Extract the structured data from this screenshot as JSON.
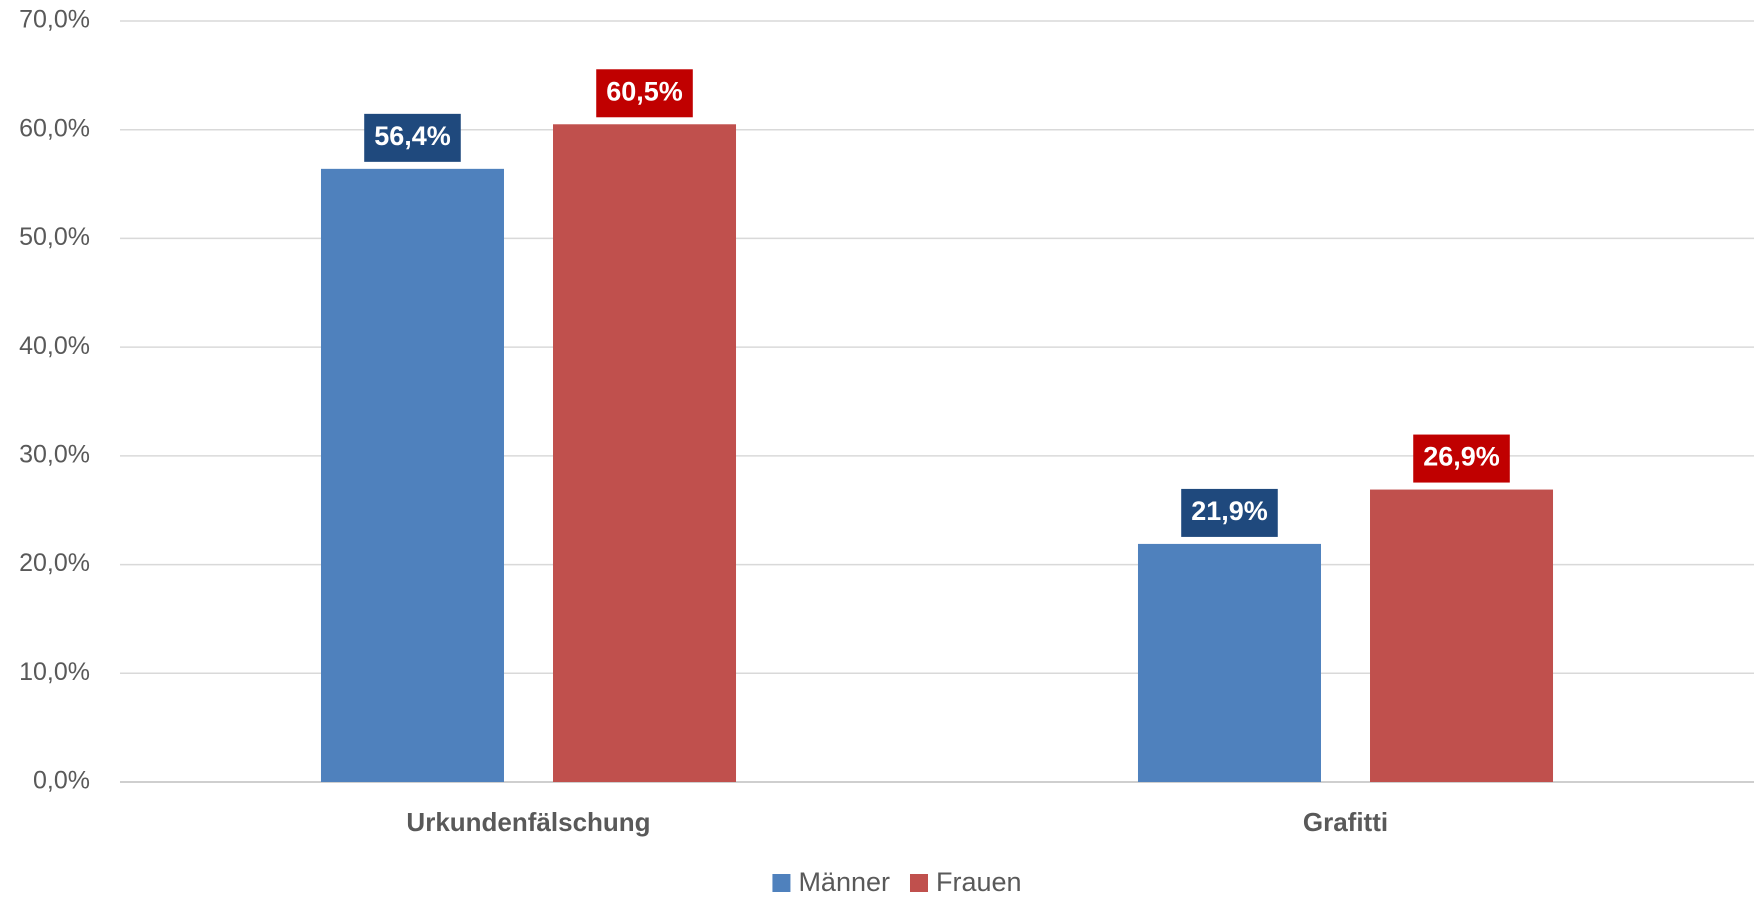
{
  "chart_data": {
    "type": "bar",
    "categories": [
      "Urkundenfälschung",
      "Grafitti"
    ],
    "series": [
      {
        "name": "Männer",
        "color": "#4f81bd",
        "label_color": "#1f497d",
        "values": [
          56.4,
          21.9
        ],
        "value_labels": [
          "56,4%",
          "21,9%"
        ]
      },
      {
        "name": "Frauen",
        "color": "#c0504d",
        "label_color": "#c00000",
        "values": [
          60.5,
          26.9
        ],
        "value_labels": [
          "60,5%",
          "26,9%"
        ]
      }
    ],
    "ylim": [
      0,
      70
    ],
    "yticks": [
      {
        "value": 0,
        "label": "0,0%"
      },
      {
        "value": 10,
        "label": "10,0%"
      },
      {
        "value": 20,
        "label": "20,0%"
      },
      {
        "value": 30,
        "label": "30,0%"
      },
      {
        "value": 40,
        "label": "40,0%"
      },
      {
        "value": 50,
        "label": "50,0%"
      },
      {
        "value": 60,
        "label": "60,0%"
      },
      {
        "value": 70,
        "label": "70,0%"
      }
    ],
    "grid": true,
    "legend": "bottom"
  }
}
